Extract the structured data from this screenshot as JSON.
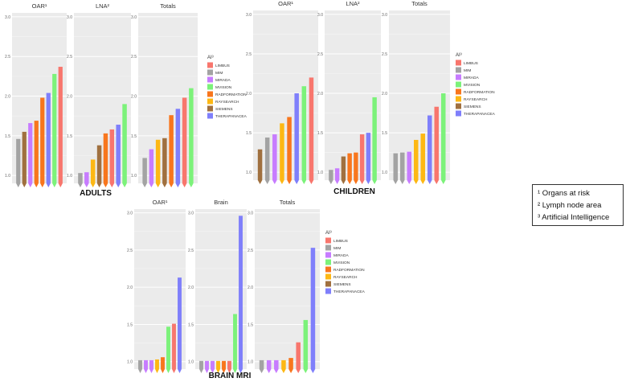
{
  "ai_legend": {
    "title": "AI³",
    "vendors": [
      "LIMBUS",
      "MIM",
      "MIRADA",
      "MVISION",
      "RADFORMATION",
      "RAYSEARCH",
      "SIEMENS",
      "THERAPANACEA"
    ],
    "colors": {
      "LIMBUS": "#f8766d",
      "MIM": "#a3a3a3",
      "MIRADA": "#c77cff",
      "MVISION": "#7cf27a",
      "RADFORMATION": "#f8761d",
      "RAYSEARCH": "#fdb814",
      "SIEMENS": "#a0703f",
      "THERAPANACEA": "#7f7ffb"
    }
  },
  "footnotes": [
    "¹ Organs at risk",
    "² Lymph node area",
    "³ Artificial Intelligence"
  ],
  "chart_data": [
    {
      "type": "bar",
      "title": "ADULTS",
      "ylim": [
        0.9,
        3.05
      ],
      "yticks": [
        "1.0",
        "1.5",
        "2.0",
        "2.5",
        "3.0"
      ],
      "panels": [
        {
          "title": "OAR¹",
          "series": [
            {
              "name": "MIM",
              "value": 1.46
            },
            {
              "name": "SIEMENS",
              "value": 1.55
            },
            {
              "name": "MIRADA",
              "value": 1.66
            },
            {
              "name": "RADFORMATION",
              "value": 1.69
            },
            {
              "name": "RADFORMATION",
              "value": 1.98
            },
            {
              "name": "THERAPANACEA",
              "value": 2.04
            },
            {
              "name": "MVISION",
              "value": 2.28
            },
            {
              "name": "LIMBUS",
              "value": 2.37
            }
          ]
        },
        {
          "title": "LNA²",
          "series": [
            {
              "name": "MIM",
              "value": 1.03
            },
            {
              "name": "MIRADA",
              "value": 1.04
            },
            {
              "name": "RAYSEARCH",
              "value": 1.2
            },
            {
              "name": "SIEMENS",
              "value": 1.38
            },
            {
              "name": "RADFORMATION",
              "value": 1.53
            },
            {
              "name": "LIMBUS",
              "value": 1.58
            },
            {
              "name": "THERAPANACEA",
              "value": 1.64
            },
            {
              "name": "MVISION",
              "value": 1.9
            }
          ]
        },
        {
          "title": "Totals",
          "series": [
            {
              "name": "MIM",
              "value": 1.22
            },
            {
              "name": "MIRADA",
              "value": 1.33
            },
            {
              "name": "RAYSEARCH",
              "value": 1.45
            },
            {
              "name": "SIEMENS",
              "value": 1.47
            },
            {
              "name": "RADFORMATION",
              "value": 1.76
            },
            {
              "name": "THERAPANACEA",
              "value": 1.84
            },
            {
              "name": "LIMBUS",
              "value": 1.98
            },
            {
              "name": "MVISION",
              "value": 2.1
            }
          ]
        }
      ]
    },
    {
      "type": "bar",
      "title": "CHILDREN",
      "ylim": [
        0.9,
        3.05
      ],
      "yticks": [
        "1.0",
        "1.5",
        "2.0",
        "2.5",
        "3.0"
      ],
      "panels": [
        {
          "title": "OAR¹",
          "series": [
            {
              "name": "SIEMENS",
              "value": 1.29
            },
            {
              "name": "MIM",
              "value": 1.44
            },
            {
              "name": "MIRADA",
              "value": 1.48
            },
            {
              "name": "RAYSEARCH",
              "value": 1.62
            },
            {
              "name": "RADFORMATION",
              "value": 1.7
            },
            {
              "name": "THERAPANACEA",
              "value": 2.0
            },
            {
              "name": "MVISION",
              "value": 2.09
            },
            {
              "name": "LIMBUS",
              "value": 2.2
            }
          ]
        },
        {
          "title": "LNA²",
          "series": [
            {
              "name": "MIM",
              "value": 1.03
            },
            {
              "name": "MIRADA",
              "value": 1.05
            },
            {
              "name": "SIEMENS",
              "value": 1.2
            },
            {
              "name": "RADFORMATION",
              "value": 1.24
            },
            {
              "name": "RADFORMATION",
              "value": 1.25
            },
            {
              "name": "LIMBUS",
              "value": 1.48
            },
            {
              "name": "THERAPANACEA",
              "value": 1.5
            },
            {
              "name": "MVISION",
              "value": 1.95
            }
          ]
        },
        {
          "title": "Totals",
          "series": [
            {
              "name": "MIM",
              "value": 1.24
            },
            {
              "name": "MIM",
              "value": 1.25
            },
            {
              "name": "MIRADA",
              "value": 1.26
            },
            {
              "name": "RAYSEARCH",
              "value": 1.41
            },
            {
              "name": "RAYSEARCH",
              "value": 1.49
            },
            {
              "name": "THERAPANACEA",
              "value": 1.72
            },
            {
              "name": "LIMBUS",
              "value": 1.83
            },
            {
              "name": "MVISION",
              "value": 2.0
            }
          ]
        }
      ]
    },
    {
      "type": "bar",
      "title": "BRAIN MRI",
      "ylim": [
        0.9,
        3.05
      ],
      "yticks": [
        "1.0",
        "1.5",
        "2.0",
        "2.5",
        "3.0"
      ],
      "panels": [
        {
          "title": "OAR¹",
          "series": [
            {
              "name": "MIM",
              "value": 1.02
            },
            {
              "name": "MIRADA",
              "value": 1.02
            },
            {
              "name": "MIRADA",
              "value": 1.02
            },
            {
              "name": "RAYSEARCH",
              "value": 1.03
            },
            {
              "name": "RADFORMATION",
              "value": 1.06
            },
            {
              "name": "MVISION",
              "value": 1.47
            },
            {
              "name": "LIMBUS",
              "value": 1.51
            },
            {
              "name": "THERAPANACEA",
              "value": 2.13
            }
          ]
        },
        {
          "title": "Brain",
          "series": [
            {
              "name": "MIM",
              "value": 1.01
            },
            {
              "name": "MIRADA",
              "value": 1.01
            },
            {
              "name": "MIRADA",
              "value": 1.01
            },
            {
              "name": "RAYSEARCH",
              "value": 1.01
            },
            {
              "name": "RADFORMATION",
              "value": 1.01
            },
            {
              "name": "LIMBUS",
              "value": 1.01
            },
            {
              "name": "MVISION",
              "value": 1.64
            },
            {
              "name": "THERAPANACEA",
              "value": 2.96
            }
          ]
        },
        {
          "title": "Totals",
          "series": [
            {
              "name": "MIM",
              "value": 1.02
            },
            {
              "name": "MIRADA",
              "value": 1.02
            },
            {
              "name": "MIRADA",
              "value": 1.02
            },
            {
              "name": "RAYSEARCH",
              "value": 1.02
            },
            {
              "name": "RADFORMATION",
              "value": 1.05
            },
            {
              "name": "LIMBUS",
              "value": 1.26
            },
            {
              "name": "MVISION",
              "value": 1.56
            },
            {
              "name": "THERAPANACEA",
              "value": 2.53
            }
          ]
        }
      ]
    }
  ]
}
